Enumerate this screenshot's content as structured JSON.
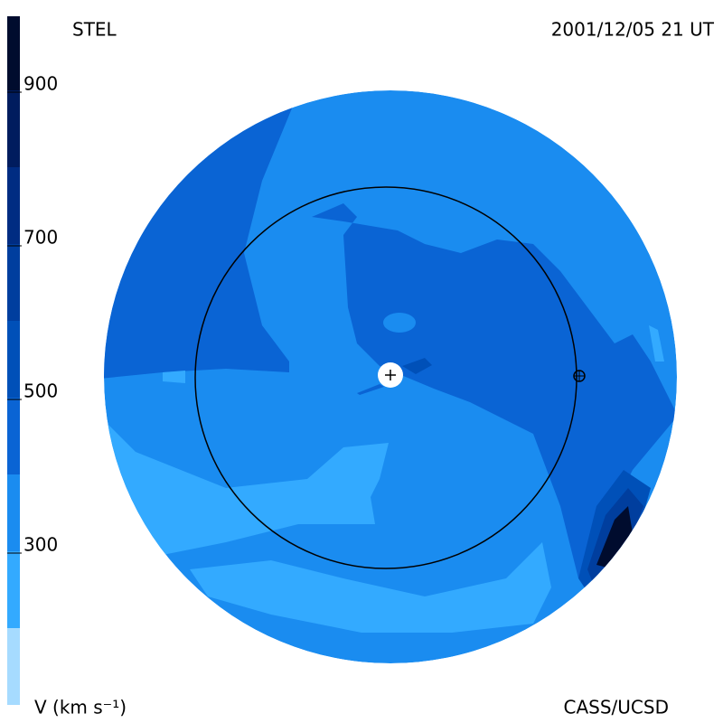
{
  "header": {
    "left": "STEL",
    "right": "2001/12/05 21 UT"
  },
  "footer": {
    "left": "V (km s⁻¹)",
    "right": "CASS/UCSD"
  },
  "colorbar": {
    "ticks": [
      300,
      500,
      700,
      900
    ],
    "colors": [
      "#a6dbff",
      "#33aaff",
      "#1a8cf0",
      "#0a64d4",
      "#0050b8",
      "#003e9e",
      "#002c82",
      "#001c5e",
      "#000c2e"
    ]
  }
}
